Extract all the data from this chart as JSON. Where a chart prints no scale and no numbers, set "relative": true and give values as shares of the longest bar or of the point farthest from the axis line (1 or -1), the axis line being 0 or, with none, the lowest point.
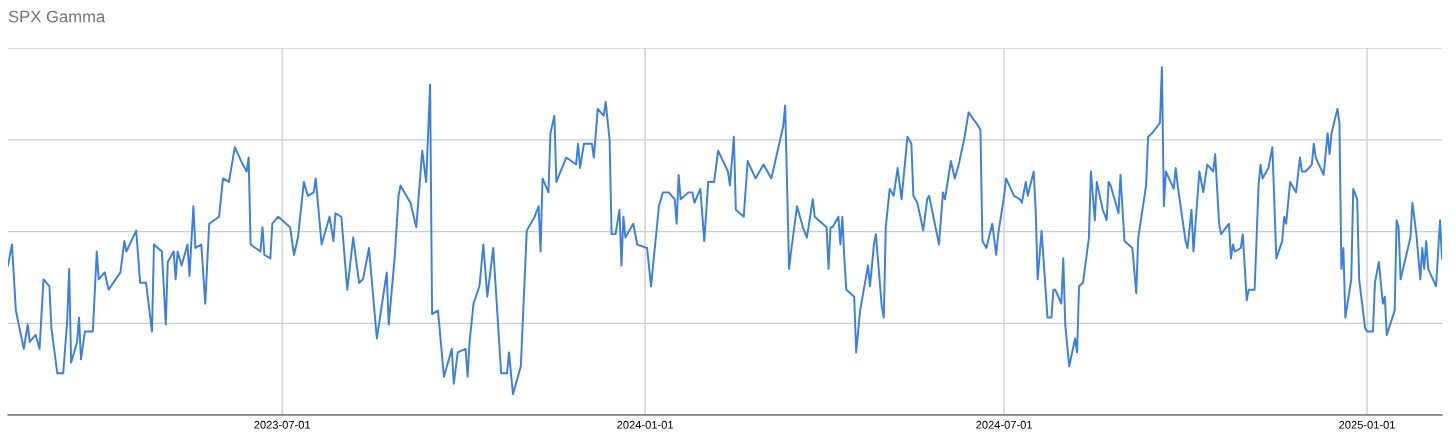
{
  "chart_data": {
    "type": "line",
    "title": "SPX Gamma",
    "relative": true,
    "grid": true,
    "legend": false,
    "marker": "none",
    "line_style": "solid",
    "xlim": [
      "2023-02-12",
      "2025-02-08"
    ],
    "xticks": [
      {
        "value": "2023-07-01",
        "label": "2023-07-01"
      },
      {
        "value": "2024-01-01",
        "label": "2024-01-01"
      },
      {
        "value": "2024-07-01",
        "label": "2024-07-01"
      },
      {
        "value": "2025-01-01",
        "label": "2025-01-01"
      }
    ],
    "x": [
      "2023-02-12",
      "2023-02-14",
      "2023-02-16",
      "2023-02-20",
      "2023-02-22",
      "2023-02-23",
      "2023-02-26",
      "2023-02-28",
      "2023-03-02",
      "2023-03-05",
      "2023-03-06",
      "2023-03-09",
      "2023-03-12",
      "2023-03-14",
      "2023-03-15",
      "2023-03-16",
      "2023-03-19",
      "2023-03-20",
      "2023-03-21",
      "2023-03-23",
      "2023-03-27",
      "2023-03-29",
      "2023-03-30",
      "2023-04-02",
      "2023-04-04",
      "2023-04-10",
      "2023-04-12",
      "2023-04-13",
      "2023-04-18",
      "2023-04-20",
      "2023-04-23",
      "2023-04-26",
      "2023-04-27",
      "2023-05-01",
      "2023-05-03",
      "2023-05-04",
      "2023-05-07",
      "2023-05-08",
      "2023-05-09",
      "2023-05-11",
      "2023-05-14",
      "2023-05-15",
      "2023-05-17",
      "2023-05-18",
      "2023-05-21",
      "2023-05-23",
      "2023-05-25",
      "2023-05-30",
      "2023-06-01",
      "2023-06-04",
      "2023-06-07",
      "2023-06-11",
      "2023-06-13",
      "2023-06-14",
      "2023-06-15",
      "2023-06-20",
      "2023-06-21",
      "2023-06-22",
      "2023-06-25",
      "2023-06-26",
      "2023-06-29",
      "2023-07-05",
      "2023-07-07",
      "2023-07-09",
      "2023-07-12",
      "2023-07-14",
      "2023-07-17",
      "2023-07-18",
      "2023-07-21",
      "2023-07-25",
      "2023-07-27",
      "2023-07-28",
      "2023-07-31",
      "2023-08-02",
      "2023-08-03",
      "2023-08-06",
      "2023-08-09",
      "2023-08-11",
      "2023-08-14",
      "2023-08-18",
      "2023-08-23",
      "2023-08-24",
      "2023-08-27",
      "2023-08-29",
      "2023-08-30",
      "2023-09-04",
      "2023-09-07",
      "2023-09-10",
      "2023-09-12",
      "2023-09-14",
      "2023-09-15",
      "2023-09-18",
      "2023-09-21",
      "2023-09-25",
      "2023-09-26",
      "2023-09-28",
      "2023-10-02",
      "2023-10-03",
      "2023-10-04",
      "2023-10-06",
      "2023-10-09",
      "2023-10-11",
      "2023-10-13",
      "2023-10-16",
      "2023-10-20",
      "2023-10-23",
      "2023-10-24",
      "2023-10-26",
      "2023-10-30",
      "2023-11-02",
      "2023-11-06",
      "2023-11-08",
      "2023-11-09",
      "2023-11-10",
      "2023-11-13",
      "2023-11-14",
      "2023-11-16",
      "2023-11-17",
      "2023-11-22",
      "2023-11-27",
      "2023-11-28",
      "2023-11-29",
      "2023-12-01",
      "2023-12-05",
      "2023-12-06",
      "2023-12-08",
      "2023-12-11",
      "2023-12-12",
      "2023-12-14",
      "2023-12-15",
      "2023-12-17",
      "2023-12-19",
      "2023-12-20",
      "2023-12-21",
      "2023-12-22",
      "2023-12-26",
      "2023-12-28",
      "2024-01-02",
      "2024-01-04",
      "2024-01-08",
      "2024-01-10",
      "2024-01-13",
      "2024-01-16",
      "2024-01-17",
      "2024-01-18",
      "2024-01-19",
      "2024-01-23",
      "2024-01-25",
      "2024-01-26",
      "2024-01-29",
      "2024-01-31",
      "2024-02-02",
      "2024-02-05",
      "2024-02-07",
      "2024-02-12",
      "2024-02-13",
      "2024-02-15",
      "2024-02-16",
      "2024-02-20",
      "2024-02-22",
      "2024-02-26",
      "2024-03-01",
      "2024-03-05",
      "2024-03-07",
      "2024-03-11",
      "2024-03-12",
      "2024-03-14",
      "2024-03-15",
      "2024-03-18",
      "2024-03-21",
      "2024-03-23",
      "2024-03-26",
      "2024-03-27",
      "2024-04-02",
      "2024-04-03",
      "2024-04-04",
      "2024-04-05",
      "2024-04-08",
      "2024-04-09",
      "2024-04-10",
      "2024-04-11",
      "2024-04-12",
      "2024-04-16",
      "2024-04-17",
      "2024-04-19",
      "2024-04-23",
      "2024-04-24",
      "2024-04-26",
      "2024-04-27",
      "2024-04-30",
      "2024-05-01",
      "2024-05-02",
      "2024-05-04",
      "2024-05-06",
      "2024-05-08",
      "2024-05-10",
      "2024-05-13",
      "2024-05-15",
      "2024-05-16",
      "2024-05-18",
      "2024-05-21",
      "2024-05-23",
      "2024-05-24",
      "2024-05-29",
      "2024-05-31",
      "2024-06-01",
      "2024-06-04",
      "2024-06-06",
      "2024-06-08",
      "2024-06-11",
      "2024-06-13",
      "2024-06-18",
      "2024-06-19",
      "2024-06-20",
      "2024-06-22",
      "2024-06-25",
      "2024-06-27",
      "2024-06-28",
      "2024-07-01",
      "2024-07-02",
      "2024-07-06",
      "2024-07-09",
      "2024-07-10",
      "2024-07-12",
      "2024-07-13",
      "2024-07-16",
      "2024-07-17",
      "2024-07-18",
      "2024-07-20",
      "2024-07-23",
      "2024-07-25",
      "2024-07-26",
      "2024-07-27",
      "2024-07-30",
      "2024-07-31",
      "2024-08-01",
      "2024-08-03",
      "2024-08-06",
      "2024-08-07",
      "2024-08-08",
      "2024-08-10",
      "2024-08-13",
      "2024-08-14",
      "2024-08-16",
      "2024-08-17",
      "2024-08-20",
      "2024-08-22",
      "2024-08-23",
      "2024-08-24",
      "2024-08-28",
      "2024-08-29",
      "2024-08-31",
      "2024-09-04",
      "2024-09-06",
      "2024-09-07",
      "2024-09-11",
      "2024-09-12",
      "2024-09-14",
      "2024-09-18",
      "2024-09-19",
      "2024-09-20",
      "2024-09-21",
      "2024-09-25",
      "2024-09-26",
      "2024-09-27",
      "2024-09-28",
      "2024-10-01",
      "2024-10-02",
      "2024-10-04",
      "2024-10-05",
      "2024-10-08",
      "2024-10-10",
      "2024-10-11",
      "2024-10-12",
      "2024-10-15",
      "2024-10-16",
      "2024-10-18",
      "2024-10-19",
      "2024-10-23",
      "2024-10-24",
      "2024-10-25",
      "2024-10-26",
      "2024-10-29",
      "2024-10-30",
      "2024-11-01",
      "2024-11-02",
      "2024-11-05",
      "2024-11-07",
      "2024-11-08",
      "2024-11-09",
      "2024-11-12",
      "2024-11-14",
      "2024-11-16",
      "2024-11-19",
      "2024-11-20",
      "2024-11-21",
      "2024-11-23",
      "2024-11-26",
      "2024-11-28",
      "2024-11-29",
      "2024-12-01",
      "2024-12-04",
      "2024-12-05",
      "2024-12-06",
      "2024-12-10",
      "2024-12-12",
      "2024-12-13",
      "2024-12-14",
      "2024-12-17",
      "2024-12-18",
      "2024-12-19",
      "2024-12-20",
      "2024-12-21",
      "2024-12-24",
      "2024-12-25",
      "2024-12-27",
      "2024-12-28",
      "2024-12-31",
      "2025-01-01",
      "2025-01-04",
      "2025-01-05",
      "2025-01-07",
      "2025-01-09",
      "2025-01-10",
      "2025-01-11",
      "2025-01-15",
      "2025-01-16",
      "2025-01-17",
      "2025-01-18",
      "2025-01-23",
      "2025-01-24",
      "2025-01-26",
      "2025-01-28",
      "2025-01-29",
      "2025-01-30",
      "2025-01-31",
      "2025-02-01",
      "2025-02-05",
      "2025-02-07",
      "2025-02-08"
    ],
    "series": [
      {
        "color": "#3b7fe0",
        "values": [
          0.43,
          0.49,
          0.3,
          0.19,
          0.26,
          0.21,
          0.23,
          0.19,
          0.39,
          0.37,
          0.25,
          0.12,
          0.12,
          0.27,
          0.42,
          0.15,
          0.21,
          0.28,
          0.16,
          0.24,
          0.24,
          0.47,
          0.39,
          0.41,
          0.36,
          0.41,
          0.5,
          0.47,
          0.53,
          0.38,
          0.38,
          0.24,
          0.49,
          0.47,
          0.26,
          0.44,
          0.47,
          0.39,
          0.47,
          0.43,
          0.49,
          0.4,
          0.6,
          0.48,
          0.49,
          0.32,
          0.55,
          0.57,
          0.68,
          0.67,
          0.77,
          0.72,
          0.7,
          0.74,
          0.49,
          0.47,
          0.54,
          0.46,
          0.45,
          0.55,
          0.57,
          0.54,
          0.46,
          0.51,
          0.67,
          0.63,
          0.64,
          0.68,
          0.49,
          0.57,
          0.5,
          0.58,
          0.57,
          0.43,
          0.36,
          0.51,
          0.38,
          0.39,
          0.48,
          0.22,
          0.41,
          0.26,
          0.45,
          0.63,
          0.66,
          0.61,
          0.54,
          0.76,
          0.67,
          0.95,
          0.29,
          0.3,
          0.11,
          0.19,
          0.09,
          0.18,
          0.19,
          0.11,
          0.21,
          0.32,
          0.37,
          0.49,
          0.34,
          0.48,
          0.12,
          0.12,
          0.18,
          0.06,
          0.14,
          0.53,
          0.57,
          0.6,
          0.47,
          0.68,
          0.64,
          0.81,
          0.86,
          0.67,
          0.74,
          0.72,
          0.78,
          0.71,
          0.78,
          0.78,
          0.74,
          0.88,
          0.86,
          0.9,
          0.79,
          0.52,
          0.52,
          0.59,
          0.43,
          0.57,
          0.51,
          0.55,
          0.49,
          0.48,
          0.37,
          0.6,
          0.64,
          0.64,
          0.62,
          0.55,
          0.69,
          0.62,
          0.64,
          0.64,
          0.61,
          0.65,
          0.5,
          0.67,
          0.67,
          0.76,
          0.7,
          0.66,
          0.8,
          0.59,
          0.57,
          0.73,
          0.68,
          0.72,
          0.68,
          0.73,
          0.83,
          0.89,
          0.42,
          0.47,
          0.6,
          0.54,
          0.51,
          0.62,
          0.57,
          0.54,
          0.42,
          0.54,
          0.54,
          0.57,
          0.49,
          0.57,
          0.45,
          0.36,
          0.34,
          0.18,
          0.3,
          0.43,
          0.37,
          0.49,
          0.52,
          0.31,
          0.28,
          0.54,
          0.65,
          0.63,
          0.71,
          0.62,
          0.8,
          0.78,
          0.63,
          0.61,
          0.53,
          0.62,
          0.63,
          0.49,
          0.64,
          0.62,
          0.73,
          0.68,
          0.72,
          0.8,
          0.87,
          0.83,
          0.82,
          0.5,
          0.48,
          0.55,
          0.46,
          0.52,
          0.63,
          0.68,
          0.63,
          0.62,
          0.61,
          0.67,
          0.63,
          0.7,
          0.59,
          0.39,
          0.53,
          0.28,
          0.28,
          0.36,
          0.36,
          0.32,
          0.45,
          0.26,
          0.14,
          0.22,
          0.18,
          0.37,
          0.38,
          0.51,
          0.7,
          0.56,
          0.67,
          0.59,
          0.56,
          0.67,
          0.66,
          0.58,
          0.69,
          0.5,
          0.48,
          0.35,
          0.51,
          0.66,
          0.8,
          0.81,
          0.84,
          1.0,
          0.6,
          0.7,
          0.65,
          0.71,
          0.66,
          0.62,
          0.5,
          0.48,
          0.59,
          0.47,
          0.7,
          0.64,
          0.68,
          0.72,
          0.7,
          0.75,
          0.55,
          0.52,
          0.55,
          0.45,
          0.49,
          0.47,
          0.48,
          0.52,
          0.33,
          0.36,
          0.36,
          0.66,
          0.72,
          0.68,
          0.71,
          0.77,
          0.45,
          0.5,
          0.57,
          0.55,
          0.67,
          0.64,
          0.74,
          0.7,
          0.7,
          0.72,
          0.78,
          0.74,
          0.69,
          0.81,
          0.75,
          0.81,
          0.88,
          0.84,
          0.42,
          0.48,
          0.28,
          0.39,
          0.65,
          0.62,
          0.39,
          0.25,
          0.24,
          0.24,
          0.38,
          0.44,
          0.32,
          0.34,
          0.23,
          0.3,
          0.56,
          0.54,
          0.39,
          0.51,
          0.61,
          0.52,
          0.39,
          0.48,
          0.42,
          0.5,
          0.42,
          0.37,
          0.56,
          0.45
        ]
      }
    ]
  }
}
